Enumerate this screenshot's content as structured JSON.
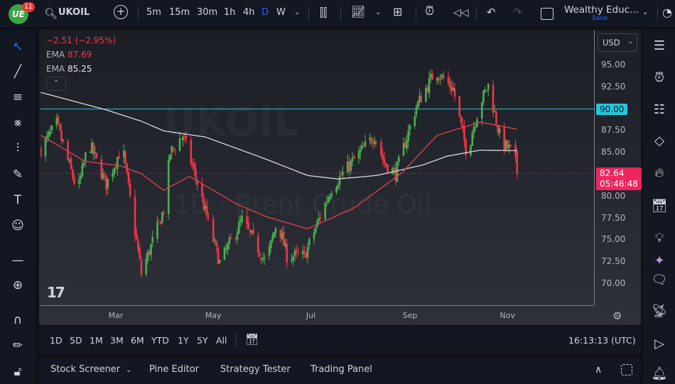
{
  "header": {
    "logo_text": "UE",
    "notification_count": "11",
    "symbol": "UKOIL",
    "intervals": [
      "5m",
      "15m",
      "30m",
      "1h",
      "4h",
      "D",
      "W"
    ],
    "active_interval": "D",
    "layout_name": "Wealthy Educ...",
    "save_label": "Save"
  },
  "legend": {
    "change": "−2.51 (−2.95%)",
    "ema1_label": "EMA",
    "ema1_value": "87.69",
    "ema2_label": "EMA",
    "ema2_value": "85.25"
  },
  "watermark": {
    "symbol": "UKOIL",
    "description": "1D · Brent Crude Oil"
  },
  "price_axis": {
    "currency": "USD",
    "current_price": "82.64",
    "countdown": "05:46:48",
    "hline_label": "90.00"
  },
  "bottom_bar": {
    "ranges": [
      "1D",
      "5D",
      "1M",
      "3M",
      "6M",
      "YTD",
      "1Y",
      "5Y",
      "All"
    ],
    "clock": "16:13:13 (UTC)"
  },
  "panel": {
    "tabs": [
      "Stock Screener",
      "Pine Editor",
      "Strategy Tester",
      "Trading Panel"
    ]
  },
  "colors": {
    "up": "#4caf50",
    "down": "#f23645",
    "ema_fast": "#e0424f",
    "ema_slow": "#d9d9de",
    "hline": "#26c6da",
    "accent": "#2962ff",
    "price_badge": "#f0245f"
  },
  "chart_data": {
    "type": "candlestick",
    "symbol": "UKOIL",
    "year": 2023,
    "ylim": [
      68,
      97.5
    ],
    "yticks": [
      "95.00",
      "92.50",
      "90.00",
      "87.50",
      "85.00",
      "80.00",
      "77.50",
      "75.00",
      "72.50",
      "70.00"
    ],
    "xticks": [
      {
        "label": "Mar",
        "date": "2023-03-01"
      },
      {
        "label": "May",
        "date": "2023-05-01"
      },
      {
        "label": "Jul",
        "date": "2023-07-01"
      },
      {
        "label": "Sep",
        "date": "2023-09-01"
      },
      {
        "label": "Nov",
        "date": "2023-11-01"
      }
    ],
    "horizontal_line": 90.0,
    "last_price": 82.64,
    "approx_closes": [
      [
        "2023-01-13",
        85.4
      ],
      [
        "2023-01-23",
        88.3
      ],
      [
        "2023-02-05",
        80.5
      ],
      [
        "2023-02-12",
        86.2
      ],
      [
        "2023-02-23",
        81.4
      ],
      [
        "2023-03-05",
        85.8
      ],
      [
        "2023-03-17",
        71.2
      ],
      [
        "2023-03-31",
        78.5
      ],
      [
        "2023-04-04",
        85.0
      ],
      [
        "2023-04-12",
        87.0
      ],
      [
        "2023-04-20",
        82.2
      ],
      [
        "2023-05-05",
        72.4
      ],
      [
        "2023-05-19",
        77.3
      ],
      [
        "2023-06-03",
        72.4
      ],
      [
        "2023-06-10",
        77.3
      ],
      [
        "2023-06-16",
        73.2
      ],
      [
        "2023-06-27",
        73.2
      ],
      [
        "2023-07-14",
        81.0
      ],
      [
        "2023-07-28",
        84.2
      ],
      [
        "2023-08-10",
        87.0
      ],
      [
        "2023-08-16",
        83.8
      ],
      [
        "2023-08-23",
        82.6
      ],
      [
        "2023-09-05",
        90.3
      ],
      [
        "2023-09-17",
        94.4
      ],
      [
        "2023-09-28",
        92.3
      ],
      [
        "2023-10-07",
        84.6
      ],
      [
        "2023-10-10",
        87.5
      ],
      [
        "2023-10-15",
        90.7
      ],
      [
        "2023-10-20",
        92.7
      ],
      [
        "2023-10-28",
        86.2
      ],
      [
        "2023-11-05",
        85.0
      ],
      [
        "2023-11-07",
        82.64
      ]
    ],
    "ema_fast": [
      [
        "2023-01-13",
        87.0
      ],
      [
        "2023-02-10",
        84.0
      ],
      [
        "2023-03-04",
        83.5
      ],
      [
        "2023-03-17",
        82.6
      ],
      [
        "2023-03-31",
        80.7
      ],
      [
        "2023-04-16",
        82.3
      ],
      [
        "2023-05-16",
        79.1
      ],
      [
        "2023-06-03",
        77.7
      ],
      [
        "2023-06-29",
        76.3
      ],
      [
        "2023-07-28",
        78.7
      ],
      [
        "2023-08-27",
        82.7
      ],
      [
        "2023-09-18",
        87.0
      ],
      [
        "2023-10-15",
        88.5
      ],
      [
        "2023-11-07",
        87.69
      ]
    ],
    "ema_slow": [
      [
        "2023-01-13",
        91.9
      ],
      [
        "2023-02-23",
        89.9
      ],
      [
        "2023-03-17",
        88.6
      ],
      [
        "2023-03-31",
        87.5
      ],
      [
        "2023-04-26",
        86.8
      ],
      [
        "2023-06-01",
        84.4
      ],
      [
        "2023-06-29",
        82.4
      ],
      [
        "2023-07-18",
        82.0
      ],
      [
        "2023-08-11",
        82.4
      ],
      [
        "2023-09-09",
        83.6
      ],
      [
        "2023-09-24",
        84.6
      ],
      [
        "2023-10-15",
        85.3
      ],
      [
        "2023-11-07",
        85.25
      ]
    ]
  }
}
